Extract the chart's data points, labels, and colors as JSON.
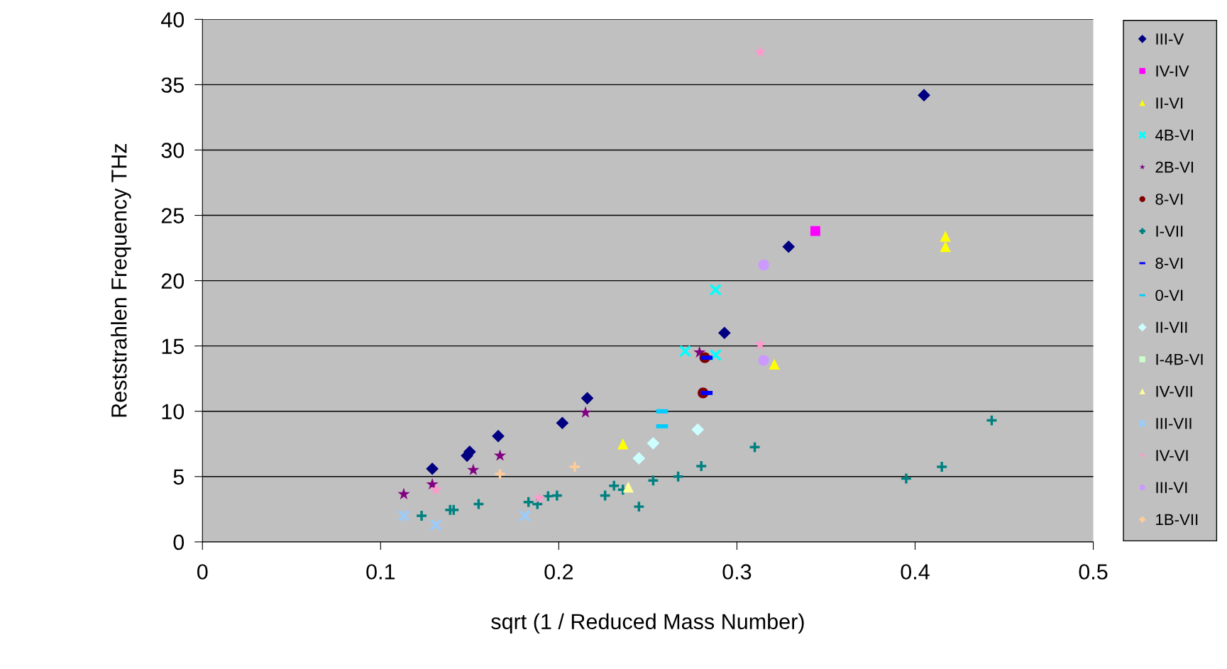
{
  "chart_data": {
    "type": "scatter",
    "xlabel": "sqrt (1 / Reduced Mass Number)",
    "ylabel": "Reststrahlen Frequency THz",
    "xlim": [
      0,
      0.5
    ],
    "xticks": [
      0,
      0.1,
      0.2,
      0.3,
      0.4,
      0.5
    ],
    "ylim": [
      0,
      40
    ],
    "yticks": [
      0,
      5,
      10,
      15,
      20,
      25,
      30,
      35,
      40
    ],
    "grid": "y",
    "legend": "right",
    "series": [
      {
        "name": "III-V",
        "color": "#000080",
        "marker": "diamond",
        "x": [
          0.129,
          0.1485,
          0.15,
          0.166,
          0.202,
          0.216,
          0.293,
          0.329,
          0.405
        ],
        "values": [
          5.6,
          6.6,
          6.9,
          8.1,
          9.1,
          11.0,
          16.0,
          22.6,
          34.2
        ]
      },
      {
        "name": "IV-IV",
        "color": "#ff00ff",
        "marker": "square",
        "x": [
          0.344
        ],
        "values": [
          23.8
        ]
      },
      {
        "name": "II-VI",
        "color": "#ffff00",
        "marker": "triangle",
        "x": [
          0.236,
          0.321,
          0.417,
          0.417
        ],
        "values": [
          7.5,
          13.6,
          23.4,
          22.6
        ]
      },
      {
        "name": "4B-VI",
        "color": "#00ffff",
        "marker": "cross",
        "x": [
          0.271,
          0.288,
          0.288
        ],
        "values": [
          14.6,
          19.3,
          14.3
        ]
      },
      {
        "name": "2B-VI",
        "color": "#800080",
        "marker": "star",
        "x": [
          0.113,
          0.129,
          0.152,
          0.167,
          0.215,
          0.279
        ],
        "values": [
          3.65,
          4.4,
          5.5,
          6.6,
          9.9,
          14.5
        ]
      },
      {
        "name": "8-VI",
        "color": "#800000",
        "marker": "circle",
        "x": [
          0.282,
          0.281
        ],
        "values": [
          14.1,
          11.4
        ]
      },
      {
        "name": "I-VII",
        "color": "#008080",
        "marker": "plus",
        "x": [
          0.123,
          0.139,
          0.141,
          0.155,
          0.183,
          0.188,
          0.194,
          0.199,
          0.226,
          0.231,
          0.236,
          0.245,
          0.253,
          0.267,
          0.28,
          0.31,
          0.395,
          0.415,
          0.443
        ],
        "values": [
          2.0,
          2.45,
          2.45,
          2.9,
          3.05,
          2.9,
          3.5,
          3.55,
          3.55,
          4.3,
          4.0,
          2.7,
          4.7,
          5.0,
          5.8,
          7.25,
          4.85,
          5.75,
          9.3
        ]
      },
      {
        "name": "8-VI",
        "color": "#0000ff",
        "x": [
          0.283,
          0.283
        ],
        "values": [
          14.1,
          11.4
        ]
      },
      {
        "name": "0-VI",
        "color": "#00ccff",
        "x": [
          0.258,
          0.258
        ],
        "values": [
          10.0,
          8.85
        ]
      },
      {
        "name": "II-VII",
        "color": "#ccffff",
        "marker": "diamond",
        "x": [
          0.245,
          0.253,
          0.278
        ],
        "values": [
          6.4,
          7.55,
          8.6
        ]
      },
      {
        "name": "I-4B-VI",
        "color": "#ccffcc",
        "marker": "square"
      },
      {
        "name": "IV-VII",
        "color": "#ffff99",
        "marker": "triangle",
        "x": [
          0.239
        ],
        "values": [
          4.2
        ]
      },
      {
        "name": "III-VII",
        "color": "#99ccff",
        "marker": "cross",
        "x": [
          0.113,
          0.131,
          0.181
        ],
        "values": [
          2.0,
          1.3,
          2.0
        ]
      },
      {
        "name": "IV-VI",
        "color": "#ff99cc",
        "marker": "star",
        "x": [
          0.131,
          0.189,
          0.313,
          0.313
        ],
        "values": [
          4.0,
          3.35,
          15.1,
          37.5
        ]
      },
      {
        "name": "III-VI",
        "color": "#cc99ff",
        "marker": "circle",
        "x": [
          0.315,
          0.315
        ],
        "values": [
          21.2,
          13.9
        ]
      },
      {
        "name": "1B-VII",
        "color": "#ffcc99",
        "marker": "plus",
        "x": [
          0.167,
          0.209
        ],
        "values": [
          5.2,
          5.75
        ]
      }
    ]
  }
}
